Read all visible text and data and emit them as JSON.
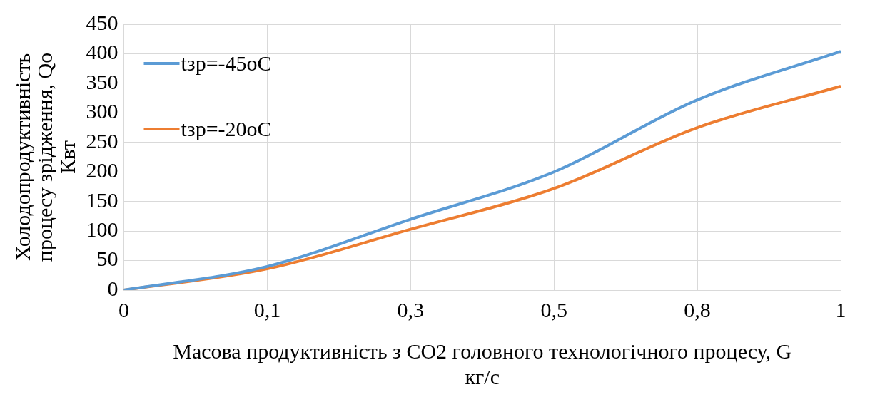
{
  "chart_data": {
    "type": "line",
    "xlabel": "Масова продуктивність з CO2 головного технологічного процесу, G кг/с",
    "ylabel": "Холодопродуктивність процесу зрідження, Qo Квт",
    "categories": [
      "0",
      "0,1",
      "0,3",
      "0,5",
      "0,8",
      "1"
    ],
    "series": [
      {
        "name": "tзр=-45oC",
        "color": "#5b9bd5",
        "values": [
          0,
          40,
          120,
          200,
          322,
          404
        ]
      },
      {
        "name": "tзр=-20oC",
        "color": "#ed7d31",
        "values": [
          0,
          36,
          103,
          172,
          275,
          345
        ]
      }
    ],
    "ylim": [
      0,
      450
    ],
    "yticks": [
      0,
      50,
      100,
      150,
      200,
      250,
      300,
      350,
      400,
      450
    ],
    "grid": true,
    "legend": "top left",
    "marker": "none",
    "line_style": "solid"
  }
}
